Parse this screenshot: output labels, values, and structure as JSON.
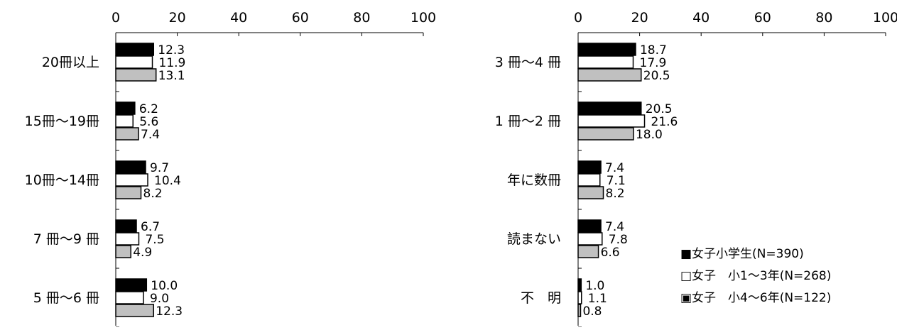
{
  "chart_data": [
    {
      "type": "bar",
      "orientation": "horizontal",
      "xlim": [
        0,
        100
      ],
      "ticks": [
        "0",
        "20",
        "40",
        "60",
        "80",
        "100"
      ],
      "categories": [
        "20冊以上",
        "15冊～19冊",
        "10冊～14冊",
        "7 冊～9 冊",
        "5 冊～6 冊"
      ],
      "series": [
        {
          "name": "女子小学生(N=390)",
          "values": [
            12.3,
            6.2,
            9.7,
            6.7,
            10.0
          ],
          "labels": [
            "12.3",
            "6.2",
            "9.7",
            "6.7",
            "10.0"
          ]
        },
        {
          "name": "女子　小1～3年(N=268)",
          "values": [
            11.9,
            5.6,
            10.4,
            7.5,
            9.0
          ],
          "labels": [
            "11.9",
            "5.6",
            "10.4",
            "7.5",
            "9.0"
          ]
        },
        {
          "name": "女子　小4～6年(N=122)",
          "values": [
            13.1,
            7.4,
            8.2,
            4.9,
            12.3
          ],
          "labels": [
            "13.1",
            "7.4",
            "8.2",
            "4.9",
            "12.3"
          ]
        }
      ]
    },
    {
      "type": "bar",
      "orientation": "horizontal",
      "xlim": [
        0,
        100
      ],
      "ticks": [
        "0",
        "20",
        "40",
        "60",
        "80",
        "100"
      ],
      "categories": [
        "3 冊～4 冊",
        "1 冊～2 冊",
        "年に数冊",
        "読まない",
        "不　明"
      ],
      "series": [
        {
          "name": "女子小学生(N=390)",
          "values": [
            18.7,
            20.5,
            7.4,
            7.4,
            1.0
          ],
          "labels": [
            "18.7",
            "20.5",
            "7.4",
            "7.4",
            "1.0"
          ]
        },
        {
          "name": "女子　小1～3年(N=268)",
          "values": [
            17.9,
            21.6,
            7.1,
            7.8,
            1.1
          ],
          "labels": [
            "17.9",
            "21.6",
            "7.1",
            "7.8",
            "1.1"
          ]
        },
        {
          "name": "女子　小4～6年(N=122)",
          "values": [
            20.5,
            18.0,
            8.2,
            6.6,
            0.8
          ],
          "labels": [
            "20.5",
            "18.0",
            "8.2",
            "6.6",
            "0.8"
          ]
        }
      ]
    }
  ],
  "legend": {
    "position": "bottom-right",
    "items": [
      {
        "label": "■女子小学生(N=390)"
      },
      {
        "label": "□女子　小1～3年(N=268)"
      },
      {
        "label": "▣女子　小4～6年(N=122)"
      }
    ]
  },
  "colors": {
    "series1": "#000000",
    "series2": "#ffffff",
    "series3": "#c0c0c0",
    "stroke": "#000000"
  }
}
